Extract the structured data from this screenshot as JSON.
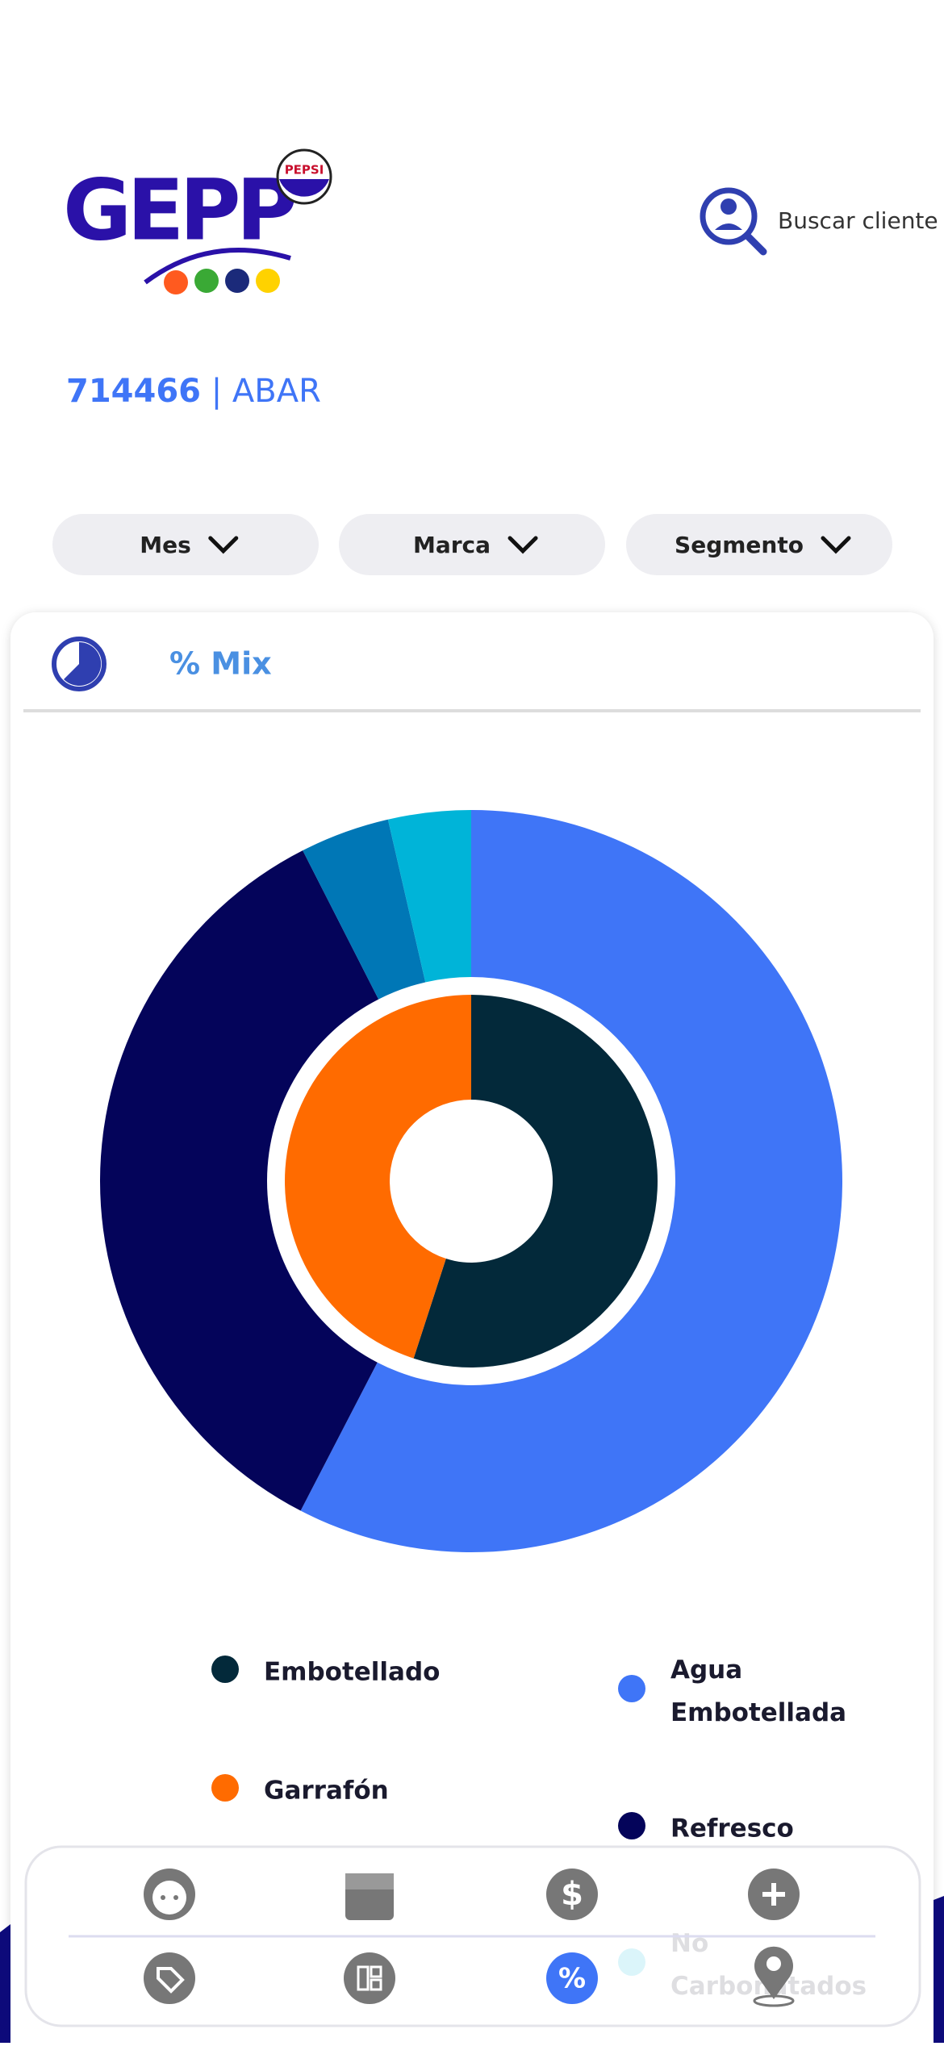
{
  "header": {
    "logo_text": "GEPP",
    "logo_badge": "PEPSI",
    "search_label": "Buscar cliente"
  },
  "client": {
    "id": "714466",
    "separator": "|",
    "name": "ABAR"
  },
  "filters": [
    "Mes",
    "Marca",
    "Segmento"
  ],
  "card": {
    "title": "% Mix"
  },
  "chart_data": {
    "type": "nested-donut",
    "inner": {
      "categories": [
        "Embotellado",
        "Garrafón"
      ],
      "values": [
        55,
        45
      ],
      "colors": [
        "#03293a",
        "#ff6b00"
      ]
    },
    "outer": {
      "categories": [
        "Agua Embotellada",
        "Refresco",
        null,
        "No Carbonatados"
      ],
      "values": [
        57.6,
        34.9,
        3.9,
        3.6
      ],
      "colors": [
        "#3f75f7",
        "#04045a",
        "#0077b6",
        "#00b4d8"
      ]
    }
  }
}
